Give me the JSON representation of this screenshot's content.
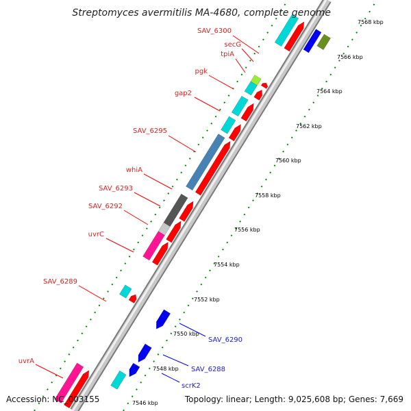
{
  "title": "Streptomyces avermitilis MA-4680, complete genome",
  "accession": "Accession: NC_003155",
  "summary": "Topology: linear; Length: 9,025,608 bp; Genes: 7,669",
  "ruler_ticks": [
    "7546 kbp",
    "7548 kbp",
    "7550 kbp",
    "7552 kbp",
    "7554 kbp",
    "7556 kbp",
    "7558 kbp",
    "7560 kbp",
    "7562 kbp",
    "7564 kbp",
    "7566 kbp",
    "7568 kbp"
  ],
  "forward_gene_labels": [
    "SAV_6300",
    "secG",
    "tpiA",
    "pgk",
    "gap2",
    "SAV_6295",
    "whiA",
    "SAV_6293",
    "SAV_6292",
    "uvrC",
    "SAV_6289",
    "uvrA"
  ],
  "reverse_gene_labels": [
    "SAV_6290",
    "SAV_6288",
    "scrK2"
  ],
  "colors": {
    "cds_red": "#ff0000",
    "reverse_blue": "#0000ee",
    "cyan": "#00d7d7",
    "steel_blue": "#4682b4",
    "dark_grey": "#555555",
    "light_grey": "#c8c8c8",
    "magenta": "#ff1493",
    "lime": "#99ee33",
    "olive": "#6b8e23",
    "backbone": "#999999",
    "tick_green": "#007700"
  }
}
